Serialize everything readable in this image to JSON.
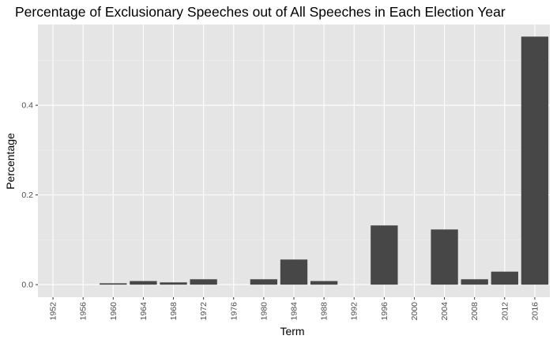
{
  "chart_data": {
    "type": "bar",
    "title": "Percentage of Exclusionary Speeches out of All Speeches in Each Election Year",
    "xlabel": "Term",
    "ylabel": "Percentage",
    "categories": [
      "1952",
      "1956",
      "1960",
      "1964",
      "1968",
      "1972",
      "1976",
      "1980",
      "1984",
      "1988",
      "1992",
      "1996",
      "2000",
      "2004",
      "2008",
      "2012",
      "2016"
    ],
    "values": [
      0,
      0,
      0.003,
      0.008,
      0.005,
      0.012,
      0,
      0.012,
      0.056,
      0.008,
      0,
      0.132,
      0,
      0.123,
      0.012,
      0.029,
      0.553
    ],
    "ylim": [
      -0.028,
      0.58
    ],
    "yticks": [
      0.0,
      0.2,
      0.4
    ],
    "ytick_labels": [
      "0.0",
      "0.2",
      "0.4"
    ],
    "grid": true,
    "legend": "none",
    "colors": {
      "bar": "#474747",
      "panel": "#e5e5e5",
      "grid_major": "#ffffff",
      "grid_minor": "#f0f0f0",
      "tick_text": "#4d4d4d",
      "tick_mark": "#333333"
    }
  }
}
